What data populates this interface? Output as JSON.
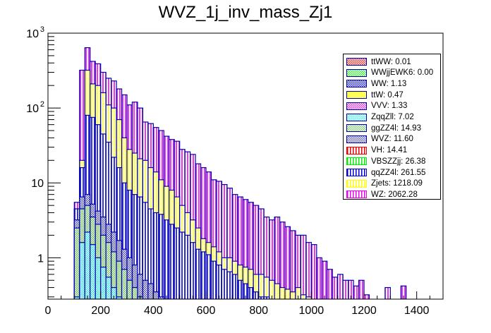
{
  "chart_data": {
    "type": "bar",
    "stacked": true,
    "title": "WVZ_1j_inv_mass_Zj1",
    "xlabel": "",
    "ylabel": "",
    "xlim": [
      0,
      1500
    ],
    "ylim": [
      0.28,
      1000
    ],
    "yscale": "log",
    "x_ticks": [
      0,
      200,
      400,
      600,
      800,
      1000,
      1200,
      1400
    ],
    "y_ticks": [
      {
        "value": 1,
        "label": "1"
      },
      {
        "value": 10,
        "label": "10"
      },
      {
        "value": 100,
        "label": "10",
        "exp": "2"
      },
      {
        "value": 1000,
        "label": "10",
        "exp": "3"
      }
    ],
    "bin_width": 20,
    "legend_position": "top-right",
    "legend": [
      {
        "name": "ttWW",
        "label": "ttWW: 0.01",
        "color": "#e03030",
        "pattern": "hatch"
      },
      {
        "name": "WWjjEWK6",
        "label": "WWjjEWK6: 0.00",
        "color": "#33ee33",
        "pattern": "hatch"
      },
      {
        "name": "WW",
        "label": "WW: 1.13",
        "color": "#2222cc",
        "pattern": "hatch"
      },
      {
        "name": "ttW",
        "label": "ttW: 0.47",
        "color": "#ffff55",
        "pattern": "solid"
      },
      {
        "name": "VVV",
        "label": "VVV: 1.33",
        "color": "#dd33dd",
        "pattern": "hatch"
      },
      {
        "name": "ZqqZll",
        "label": "ZqqZll: 7.02",
        "color": "#55eeee",
        "pattern": "hatch"
      },
      {
        "name": "ggZZ4l",
        "label": "ggZZ4l: 14.93",
        "color": "#88cc77",
        "pattern": "hatch"
      },
      {
        "name": "WVZ",
        "label": "WVZ: 11.60",
        "color": "#6666bb",
        "pattern": "hatch"
      },
      {
        "name": "VH",
        "label": "VH: 14.41",
        "color": "#ee0000",
        "pattern": "vlines"
      },
      {
        "name": "VBSZZjj",
        "label": "VBSZZjj: 26.38",
        "color": "#00ee00",
        "pattern": "vlines"
      },
      {
        "name": "qqZZ4l",
        "label": "qqZZ4l: 261.55",
        "color": "#0000dd",
        "pattern": "vlines"
      },
      {
        "name": "Zjets",
        "label": "Zjets: 1218.09",
        "color": "#ffff00",
        "pattern": "vlines"
      },
      {
        "name": "WZ",
        "label": "WZ: 2062.28",
        "color": "#ee00ee",
        "pattern": "vlines"
      }
    ],
    "stack_tops": {
      "x_start": [
        100,
        120,
        140,
        160,
        180,
        200,
        220,
        240,
        260,
        280,
        300,
        320,
        340,
        360,
        380,
        400,
        420,
        440,
        460,
        480,
        500,
        520,
        540,
        560,
        580,
        600,
        620,
        640,
        660,
        680,
        700,
        720,
        740,
        760,
        780,
        800,
        820,
        840,
        860,
        880,
        900,
        920,
        940,
        960,
        980,
        1000,
        1020,
        1040,
        1060,
        1080,
        1100,
        1120,
        1140,
        1160,
        1180,
        1200,
        1280,
        1340
      ],
      "ZqqZll": [
        0.3,
        1.6,
        2.2,
        1.5,
        1.0,
        0.75,
        0.55,
        0.4,
        0.3,
        0.28,
        0,
        0,
        0,
        0,
        0,
        0,
        0,
        0,
        0,
        0,
        0,
        0,
        0,
        0,
        0,
        0,
        0,
        0,
        0,
        0,
        0,
        0,
        0,
        0,
        0,
        0,
        0,
        0,
        0,
        0,
        0,
        0,
        0,
        0,
        0,
        0,
        0,
        0,
        0,
        0,
        0,
        0,
        0,
        0,
        0,
        0,
        0,
        0
      ],
      "ggZZ4l": [
        2.5,
        4.5,
        5.0,
        3.5,
        2.8,
        2.0,
        1.6,
        1.2,
        0.9,
        0.7,
        0.5,
        0.4,
        0.3,
        0,
        0,
        0,
        0,
        0,
        0,
        0,
        0,
        0,
        0,
        0,
        0,
        0,
        0,
        0,
        0,
        0,
        0,
        0,
        0,
        0,
        0,
        0,
        0,
        0,
        0,
        0,
        0,
        0,
        0,
        0,
        0,
        0,
        0,
        0,
        0,
        0,
        0,
        0,
        0,
        0,
        0,
        0,
        0,
        0
      ],
      "WVZ": [
        3.2,
        6.5,
        7.0,
        5.2,
        4.2,
        3.5,
        2.8,
        2.2,
        1.7,
        1.3,
        1.0,
        0.8,
        0.6,
        0.5,
        0.45,
        0.35,
        0.3,
        0,
        0,
        0,
        0,
        0,
        0,
        0,
        0,
        0,
        0,
        0,
        0,
        0,
        0,
        0,
        0,
        0,
        0,
        0,
        0,
        0,
        0,
        0,
        0,
        0,
        0,
        0,
        0,
        0,
        0,
        0,
        0,
        0,
        0,
        0,
        0,
        0,
        0,
        0,
        0,
        0
      ],
      "qqZZ4l": [
        4.5,
        16,
        80,
        75,
        60,
        45,
        35,
        22,
        16,
        10,
        8,
        7,
        6.5,
        5.5,
        4.5,
        4,
        3.8,
        3.2,
        2.8,
        2.5,
        2.2,
        2.0,
        1.6,
        1.3,
        1.2,
        1.1,
        0.9,
        0.8,
        0.7,
        0.65,
        0.6,
        0.5,
        0.45,
        0.4,
        0.35,
        0.3,
        0.3,
        0,
        0,
        0,
        0,
        0,
        0,
        0,
        0,
        0,
        0,
        0,
        0,
        0,
        0,
        0,
        0,
        0,
        0,
        0,
        0,
        0
      ],
      "Zjets": [
        4.5,
        20,
        320,
        210,
        200,
        160,
        110,
        100,
        70,
        40,
        28,
        25,
        21,
        20,
        16,
        14,
        11,
        9,
        8,
        6.5,
        5.0,
        4.0,
        3.2,
        2.5,
        1.8,
        1.6,
        1.4,
        1.2,
        1.0,
        1.0,
        0.9,
        0.8,
        0.75,
        0.7,
        0.6,
        0.6,
        0.55,
        0.5,
        0.45,
        0.4,
        0.38,
        0.35,
        0.4,
        0.32,
        0.3,
        0,
        0,
        0,
        0,
        0,
        0,
        0,
        0,
        0,
        0,
        0,
        0,
        0
      ],
      "WZ": [
        5.5,
        320,
        640,
        420,
        390,
        300,
        250,
        230,
        180,
        150,
        110,
        120,
        100,
        65,
        62,
        55,
        50,
        42,
        38,
        36,
        28,
        26,
        24,
        18,
        16,
        14,
        11,
        10.5,
        9.5,
        8.5,
        7,
        6.5,
        6,
        5.5,
        5,
        4.5,
        3.5,
        3.2,
        3.5,
        3,
        2.6,
        2.3,
        2.0,
        2.0,
        1.6,
        1.5,
        1.0,
        0.9,
        0.7,
        0.55,
        0.6,
        0.5,
        0.5,
        0.42,
        0.5,
        0.32,
        0.4,
        0.42
      ]
    }
  }
}
